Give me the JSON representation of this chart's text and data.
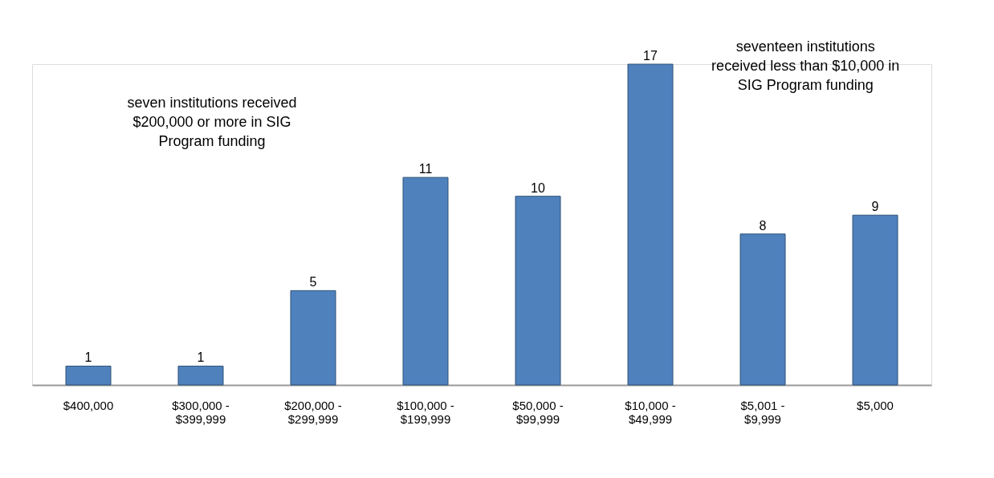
{
  "chart_data": {
    "type": "bar",
    "categories": [
      "$400,000",
      "$300,000 - $399,999",
      "$200,000 - $299,999",
      "$100,000 - $199,999",
      "$50,000 - $99,999",
      "$10,000 - $49,999",
      "$5,001 - $9,999",
      "$5,000"
    ],
    "values": [
      1,
      1,
      5,
      11,
      10,
      17,
      8,
      9
    ],
    "color": "#4f81bd",
    "data_labels": true,
    "annotations": [
      "seven institutions received $200,000 or more in SIG Program funding",
      "seventeen institutions received less than $10,000 in SIG Program funding"
    ]
  }
}
